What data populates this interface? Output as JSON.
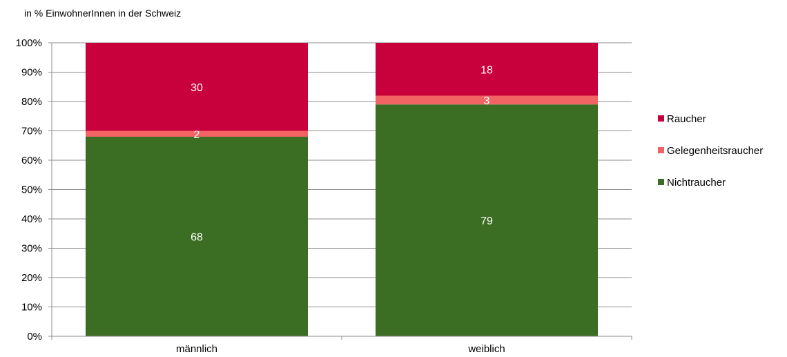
{
  "chart_data": {
    "type": "bar",
    "stacked": true,
    "subtitle": "in % EinwohnerInnen in der Schweiz",
    "categories": [
      "männlich",
      "weiblich"
    ],
    "series": [
      {
        "name": "Nichtraucher",
        "values": [
          68,
          79
        ],
        "color": "#3b6e22"
      },
      {
        "name": "Gelegenheitsraucher",
        "values": [
          2,
          3
        ],
        "color": "#f26464"
      },
      {
        "name": "Raucher",
        "values": [
          30,
          18
        ],
        "color": "#c8003c"
      }
    ],
    "ylim": [
      0,
      100
    ],
    "yticks": [
      "0%",
      "10%",
      "20%",
      "30%",
      "40%",
      "50%",
      "60%",
      "70%",
      "80%",
      "90%",
      "100%"
    ],
    "grid": true,
    "legend_position": "right"
  }
}
